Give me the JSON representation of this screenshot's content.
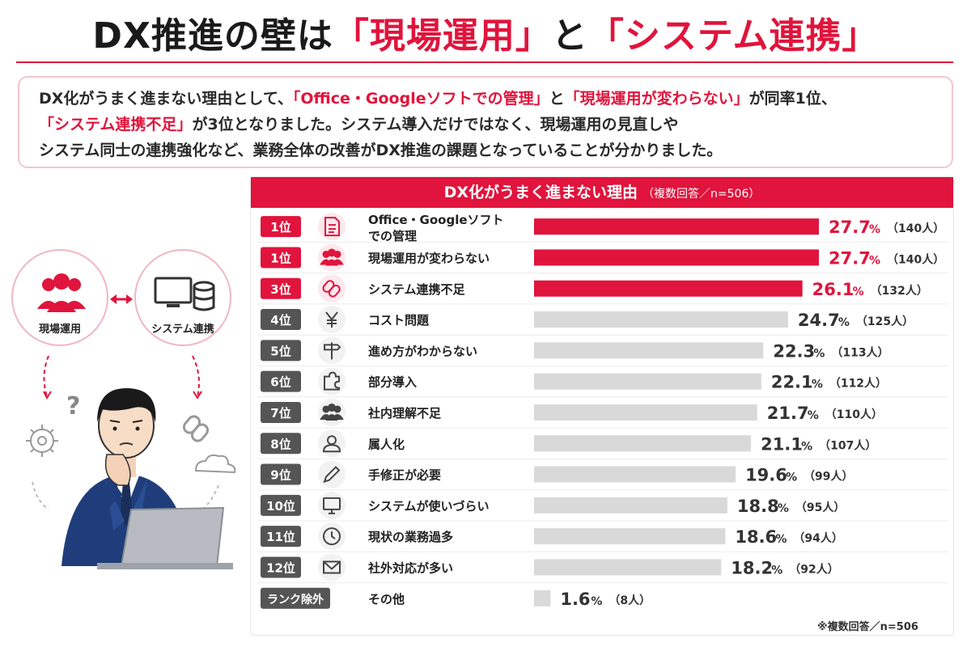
{
  "header": {
    "title_prefix": "DX推進の壁は",
    "title_q1": "「現場運用」",
    "title_mid": "と",
    "title_q2": "「システム連携」"
  },
  "summary": {
    "line1_a": "DX化がうまく進まない理由として、",
    "line1_hl1": "「Office・Googleソフトでの管理」",
    "line1_b": "と",
    "line1_hl2": "「現場運用が変わらない」",
    "line1_c": "が同率1位、",
    "line2_hl": "「システム連携不足」",
    "line2_a": "が3位となりました。システム導入だけではなく、現場運用の見直しや",
    "line3": "システム同士の連携強化など、業務全体の改善がDX推進の課題となっていることが分かりました。"
  },
  "illustration": {
    "left_circle_label": "現場運用",
    "right_circle_label": "システム連携",
    "question_mark": "?"
  },
  "colors": {
    "accent": "#e0143c",
    "bar_gray": "#d9d9d9",
    "rank_gray": "#555555",
    "icon_bg": "#f2f2f2"
  },
  "chart_data": {
    "type": "bar",
    "orientation": "horizontal",
    "title": "DX化がうまく進まない理由",
    "subtitle": "（複数回答／n=506）",
    "value_unit": "%",
    "xlim": [
      0,
      27.7
    ],
    "items": [
      {
        "rank": "1位",
        "label": "Office・Googleソフトでの管理",
        "label_lines": [
          "Office・Googleソフト",
          "での管理"
        ],
        "value": 27.7,
        "count": "（140人）",
        "icon": "document-icon",
        "highlight": true
      },
      {
        "rank": "1位",
        "label": "現場運用が変わらない",
        "label_lines": [
          "現場運用が変わらない"
        ],
        "value": 27.7,
        "count": "（140人）",
        "icon": "people-icon",
        "highlight": true
      },
      {
        "rank": "3位",
        "label": "システム連携不足",
        "label_lines": [
          "システム連携不足"
        ],
        "value": 26.1,
        "count": "（132人）",
        "icon": "link-icon",
        "highlight": true
      },
      {
        "rank": "4位",
        "label": "コスト問題",
        "label_lines": [
          "コスト問題"
        ],
        "value": 24.7,
        "count": "（125人）",
        "icon": "yen-icon",
        "highlight": false
      },
      {
        "rank": "5位",
        "label": "進め方がわからない",
        "label_lines": [
          "進め方がわからない"
        ],
        "value": 22.3,
        "count": "（113人）",
        "icon": "signpost-icon",
        "highlight": false
      },
      {
        "rank": "6位",
        "label": "部分導入",
        "label_lines": [
          "部分導入"
        ],
        "value": 22.1,
        "count": "（112人）",
        "icon": "puzzle-icon",
        "highlight": false
      },
      {
        "rank": "7位",
        "label": "社内理解不足",
        "label_lines": [
          "社内理解不足"
        ],
        "value": 21.7,
        "count": "（110人）",
        "icon": "group-icon",
        "highlight": false
      },
      {
        "rank": "8位",
        "label": "属人化",
        "label_lines": [
          "属人化"
        ],
        "value": 21.1,
        "count": "（107人）",
        "icon": "person-icon",
        "highlight": false
      },
      {
        "rank": "9位",
        "label": "手修正が必要",
        "label_lines": [
          "手修正が必要"
        ],
        "value": 19.6,
        "count": "（99人）",
        "icon": "pencil-icon",
        "highlight": false
      },
      {
        "rank": "10位",
        "label": "システムが使いづらい",
        "label_lines": [
          "システムが使いづらい"
        ],
        "value": 18.8,
        "count": "（95人）",
        "icon": "monitor-icon",
        "highlight": false
      },
      {
        "rank": "11位",
        "label": "現状の業務過多",
        "label_lines": [
          "現状の業務過多"
        ],
        "value": 18.6,
        "count": "（94人）",
        "icon": "clock-icon",
        "highlight": false
      },
      {
        "rank": "12位",
        "label": "社外対応が多い",
        "label_lines": [
          "社外対応が多い"
        ],
        "value": 18.2,
        "count": "（92人）",
        "icon": "mail-icon",
        "highlight": false
      },
      {
        "rank": "ランク除外",
        "label": "その他",
        "label_lines": [
          "その他"
        ],
        "value": 1.6,
        "count": "（8人）",
        "icon": "",
        "highlight": false
      }
    ]
  },
  "footnote": "※複数回答／n=506"
}
